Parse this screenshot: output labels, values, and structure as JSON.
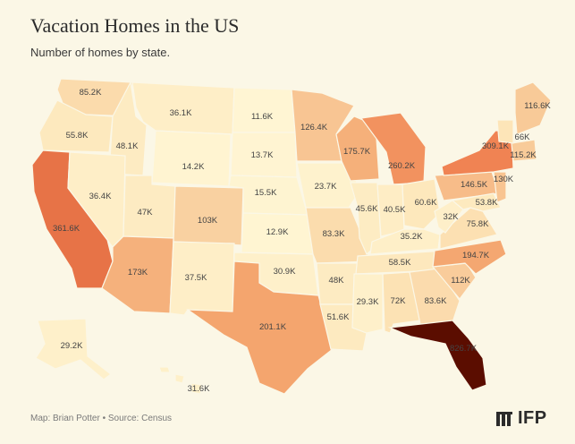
{
  "title": "Vacation Homes in the US",
  "subtitle": "Number of homes by state.",
  "footer": "Map: Brian Potter • Source: Census",
  "logo_text": "IFP",
  "logo_icon": "ifp-logo-icon",
  "colors": {
    "background": "#fbf7e6",
    "scale_low": "#fff8d8",
    "scale_high": "#5a0c00"
  },
  "states": [
    {
      "name": "Washington",
      "label": "85.2K",
      "value": 85.2
    },
    {
      "name": "Oregon",
      "label": "55.8K",
      "value": 55.8
    },
    {
      "name": "California",
      "label": "361.6K",
      "value": 361.6
    },
    {
      "name": "Idaho",
      "label": "48.1K",
      "value": 48.1
    },
    {
      "name": "Nevada",
      "label": "36.4K",
      "value": 36.4
    },
    {
      "name": "Montana",
      "label": "36.1K",
      "value": 36.1
    },
    {
      "name": "Wyoming",
      "label": "14.2K",
      "value": 14.2
    },
    {
      "name": "Utah",
      "label": "47K",
      "value": 47
    },
    {
      "name": "Arizona",
      "label": "173K",
      "value": 173
    },
    {
      "name": "Colorado",
      "label": "103K",
      "value": 103
    },
    {
      "name": "New Mexico",
      "label": "37.5K",
      "value": 37.5
    },
    {
      "name": "North Dakota",
      "label": "11.6K",
      "value": 11.6
    },
    {
      "name": "South Dakota",
      "label": "13.7K",
      "value": 13.7
    },
    {
      "name": "Nebraska",
      "label": "15.5K",
      "value": 15.5
    },
    {
      "name": "Kansas",
      "label": "12.9K",
      "value": 12.9
    },
    {
      "name": "Oklahoma",
      "label": "30.9K",
      "value": 30.9
    },
    {
      "name": "Texas",
      "label": "201.1K",
      "value": 201.1
    },
    {
      "name": "Minnesota",
      "label": "126.4K",
      "value": 126.4
    },
    {
      "name": "Iowa",
      "label": "23.7K",
      "value": 23.7
    },
    {
      "name": "Missouri",
      "label": "83.3K",
      "value": 83.3
    },
    {
      "name": "Arkansas",
      "label": "48K",
      "value": 48
    },
    {
      "name": "Louisiana",
      "label": "51.6K",
      "value": 51.6
    },
    {
      "name": "Wisconsin",
      "label": "175.7K",
      "value": 175.7
    },
    {
      "name": "Illinois",
      "label": "45.6K",
      "value": 45.6
    },
    {
      "name": "Michigan",
      "label": "260.2K",
      "value": 260.2
    },
    {
      "name": "Indiana",
      "label": "40.5K",
      "value": 40.5
    },
    {
      "name": "Ohio",
      "label": "60.6K",
      "value": 60.6
    },
    {
      "name": "Kentucky",
      "label": "35.2K",
      "value": 35.2
    },
    {
      "name": "Tennessee",
      "label": "58.5K",
      "value": 58.5
    },
    {
      "name": "Mississippi",
      "label": "29.3K",
      "value": 29.3
    },
    {
      "name": "Alabama",
      "label": "72K",
      "value": 72
    },
    {
      "name": "Georgia",
      "label": "83.6K",
      "value": 83.6
    },
    {
      "name": "Florida",
      "label": "826.7K",
      "value": 826.7
    },
    {
      "name": "South Carolina",
      "label": "112K",
      "value": 112
    },
    {
      "name": "North Carolina",
      "label": "194.7K",
      "value": 194.7
    },
    {
      "name": "Virginia",
      "label": "75.8K",
      "value": 75.8
    },
    {
      "name": "West Virginia",
      "label": "32K",
      "value": 32
    },
    {
      "name": "Pennsylvania",
      "label": "146.5K",
      "value": 146.5
    },
    {
      "name": "Maryland",
      "label": "53.8K",
      "value": 53.8
    },
    {
      "name": "New Jersey",
      "label": "130K",
      "value": 130
    },
    {
      "name": "New York",
      "label": "309.1K",
      "value": 309.1
    },
    {
      "name": "Massachusetts",
      "label": "115.2K",
      "value": 115.2
    },
    {
      "name": "Vermont",
      "label": "66K",
      "value": 66
    },
    {
      "name": "Maine",
      "label": "116.6K",
      "value": 116.6
    },
    {
      "name": "Alaska",
      "label": "29.2K",
      "value": 29.2
    },
    {
      "name": "Hawaii",
      "label": "31.6K",
      "value": 31.6
    }
  ]
}
